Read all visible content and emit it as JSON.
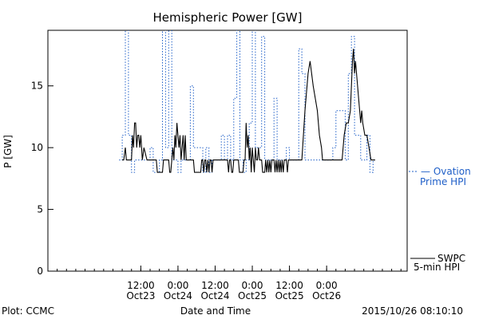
{
  "chart_data": {
    "type": "line",
    "title": "Hemispheric Power [GW]",
    "xlabel": "Date and Time",
    "ylabel": "P [GW]",
    "ylim": [
      0,
      19.5
    ],
    "yticks": [
      0,
      5,
      10,
      15
    ],
    "xlim": [
      "2015-10-22T06:00",
      "2015-10-27T02:00"
    ],
    "xticks": [
      {
        "t": "2015-10-23T12:00",
        "line1": "12:00",
        "line2": "Oct23"
      },
      {
        "t": "2015-10-24T00:00",
        "line1": "0:00",
        "line2": "Oct24"
      },
      {
        "t": "2015-10-24T12:00",
        "line1": "12:00",
        "line2": "Oct24"
      },
      {
        "t": "2015-10-25T00:00",
        "line1": "0:00",
        "line2": "Oct25"
      },
      {
        "t": "2015-10-25T12:00",
        "line1": "12:00",
        "line2": "Oct25"
      },
      {
        "t": "2015-10-26T00:00",
        "line1": "0:00",
        "line2": "Oct26"
      }
    ],
    "series": [
      {
        "name": "SWPC 5-min HPI",
        "color": "#000000",
        "style": "solid",
        "points": [
          [
            "2015-10-23T06:00",
            9
          ],
          [
            "2015-10-23T06:30",
            9
          ],
          [
            "2015-10-23T07:00",
            10
          ],
          [
            "2015-10-23T07:20",
            9
          ],
          [
            "2015-10-23T07:40",
            9
          ],
          [
            "2015-10-23T08:00",
            9
          ],
          [
            "2015-10-23T09:00",
            9
          ],
          [
            "2015-10-23T09:20",
            11
          ],
          [
            "2015-10-23T09:40",
            10
          ],
          [
            "2015-10-23T10:00",
            12
          ],
          [
            "2015-10-23T10:20",
            12
          ],
          [
            "2015-10-23T10:40",
            10
          ],
          [
            "2015-10-23T11:00",
            11
          ],
          [
            "2015-10-23T11:20",
            11
          ],
          [
            "2015-10-23T11:40",
            10
          ],
          [
            "2015-10-23T12:00",
            11
          ],
          [
            "2015-10-23T12:30",
            9
          ],
          [
            "2015-10-23T13:00",
            10
          ],
          [
            "2015-10-23T14:00",
            9
          ],
          [
            "2015-10-23T16:00",
            9
          ],
          [
            "2015-10-23T17:00",
            9
          ],
          [
            "2015-10-23T17:20",
            8
          ],
          [
            "2015-10-23T19:00",
            8
          ],
          [
            "2015-10-23T19:20",
            9
          ],
          [
            "2015-10-23T21:00",
            9
          ],
          [
            "2015-10-23T21:20",
            8
          ],
          [
            "2015-10-23T21:40",
            8
          ],
          [
            "2015-10-23T22:00",
            9
          ],
          [
            "2015-10-23T22:20",
            10
          ],
          [
            "2015-10-23T22:40",
            9
          ],
          [
            "2015-10-23T23:00",
            11
          ],
          [
            "2015-10-23T23:20",
            10
          ],
          [
            "2015-10-23T23:40",
            12
          ],
          [
            "2015-10-24T00:00",
            11
          ],
          [
            "2015-10-24T00:20",
            10
          ],
          [
            "2015-10-24T00:40",
            11
          ],
          [
            "2015-10-24T01:00",
            9
          ],
          [
            "2015-10-24T01:20",
            10
          ],
          [
            "2015-10-24T01:40",
            11
          ],
          [
            "2015-10-24T02:00",
            9
          ],
          [
            "2015-10-24T02:20",
            11
          ],
          [
            "2015-10-24T02:40",
            9
          ],
          [
            "2015-10-24T05:00",
            9
          ],
          [
            "2015-10-24T05:20",
            8
          ],
          [
            "2015-10-24T07:20",
            8
          ],
          [
            "2015-10-24T07:40",
            9
          ],
          [
            "2015-10-24T08:00",
            9
          ],
          [
            "2015-10-24T08:20",
            8
          ],
          [
            "2015-10-24T08:40",
            9
          ],
          [
            "2015-10-24T09:00",
            9
          ],
          [
            "2015-10-24T09:20",
            8
          ],
          [
            "2015-10-24T09:40",
            9
          ],
          [
            "2015-10-24T10:00",
            8
          ],
          [
            "2015-10-24T10:20",
            9
          ],
          [
            "2015-10-24T10:40",
            9
          ],
          [
            "2015-10-24T11:00",
            8
          ],
          [
            "2015-10-24T11:20",
            9
          ],
          [
            "2015-10-24T16:00",
            9
          ],
          [
            "2015-10-24T16:20",
            8
          ],
          [
            "2015-10-24T16:40",
            9
          ],
          [
            "2015-10-24T17:00",
            9
          ],
          [
            "2015-10-24T17:20",
            8
          ],
          [
            "2015-10-24T17:40",
            8
          ],
          [
            "2015-10-24T18:00",
            9
          ],
          [
            "2015-10-24T19:30",
            9
          ],
          [
            "2015-10-24T19:50",
            8
          ],
          [
            "2015-10-24T21:00",
            8
          ],
          [
            "2015-10-24T21:20",
            9
          ],
          [
            "2015-10-24T21:40",
            9
          ],
          [
            "2015-10-24T22:00",
            12
          ],
          [
            "2015-10-24T22:20",
            10
          ],
          [
            "2015-10-24T22:40",
            11
          ],
          [
            "2015-10-24T23:00",
            9
          ],
          [
            "2015-10-24T23:20",
            10
          ],
          [
            "2015-10-24T23:40",
            8
          ],
          [
            "2015-10-25T00:00",
            10
          ],
          [
            "2015-10-25T00:20",
            9
          ],
          [
            "2015-10-25T00:40",
            8
          ],
          [
            "2015-10-25T01:00",
            10
          ],
          [
            "2015-10-25T01:20",
            9
          ],
          [
            "2015-10-25T01:40",
            9
          ],
          [
            "2015-10-25T02:00",
            10
          ],
          [
            "2015-10-25T02:20",
            9
          ],
          [
            "2015-10-25T03:00",
            9
          ],
          [
            "2015-10-25T03:20",
            8
          ],
          [
            "2015-10-25T04:00",
            8
          ],
          [
            "2015-10-25T04:20",
            9
          ],
          [
            "2015-10-25T04:40",
            8
          ],
          [
            "2015-10-25T05:00",
            9
          ],
          [
            "2015-10-25T05:20",
            8
          ],
          [
            "2015-10-25T05:40",
            9
          ],
          [
            "2015-10-25T06:00",
            8
          ],
          [
            "2015-10-25T06:20",
            9
          ],
          [
            "2015-10-25T07:00",
            9
          ],
          [
            "2015-10-25T07:20",
            8
          ],
          [
            "2015-10-25T07:40",
            9
          ],
          [
            "2015-10-25T08:00",
            8
          ],
          [
            "2015-10-25T08:20",
            9
          ],
          [
            "2015-10-25T08:40",
            8
          ],
          [
            "2015-10-25T09:00",
            9
          ],
          [
            "2015-10-25T09:20",
            8
          ],
          [
            "2015-10-25T09:40",
            9
          ],
          [
            "2015-10-25T10:00",
            8
          ],
          [
            "2015-10-25T10:20",
            9
          ],
          [
            "2015-10-25T11:00",
            9
          ],
          [
            "2015-10-25T11:20",
            8
          ],
          [
            "2015-10-25T11:40",
            9
          ],
          [
            "2015-10-25T12:00",
            9
          ],
          [
            "2015-10-25T16:00",
            9
          ],
          [
            "2015-10-25T17:00",
            13
          ],
          [
            "2015-10-25T17:40",
            15
          ],
          [
            "2015-10-25T18:00",
            16
          ],
          [
            "2015-10-25T18:40",
            17
          ],
          [
            "2015-10-25T19:40",
            15
          ],
          [
            "2015-10-25T20:20",
            14
          ],
          [
            "2015-10-25T21:00",
            13
          ],
          [
            "2015-10-25T21:40",
            11
          ],
          [
            "2015-10-25T22:20",
            10
          ],
          [
            "2015-10-25T22:40",
            9
          ],
          [
            "2015-10-25T23:00",
            9
          ],
          [
            "2015-10-26T05:00",
            9
          ],
          [
            "2015-10-26T05:40",
            11
          ],
          [
            "2015-10-26T06:20",
            12
          ],
          [
            "2015-10-26T07:00",
            12
          ],
          [
            "2015-10-26T07:40",
            13
          ],
          [
            "2015-10-26T08:00",
            15
          ],
          [
            "2015-10-26T08:20",
            17
          ],
          [
            "2015-10-26T08:40",
            18
          ],
          [
            "2015-10-26T09:00",
            16
          ],
          [
            "2015-10-26T09:20",
            17
          ],
          [
            "2015-10-26T10:00",
            15
          ],
          [
            "2015-10-26T10:40",
            13
          ],
          [
            "2015-10-26T11:00",
            12
          ],
          [
            "2015-10-26T11:20",
            13
          ],
          [
            "2015-10-26T11:40",
            12
          ],
          [
            "2015-10-26T12:20",
            11
          ],
          [
            "2015-10-26T13:00",
            11
          ],
          [
            "2015-10-26T13:40",
            10
          ],
          [
            "2015-10-26T14:20",
            9
          ],
          [
            "2015-10-26T15:40",
            9
          ]
        ]
      },
      {
        "name": "Ovation Prime HPI",
        "color": "#1f5fc8",
        "style": "dashed",
        "points": [
          [
            "2015-10-23T05:00",
            9
          ],
          [
            "2015-10-23T06:00",
            11
          ],
          [
            "2015-10-23T07:00",
            20
          ],
          [
            "2015-10-23T08:00",
            11
          ],
          [
            "2015-10-23T09:00",
            8
          ],
          [
            "2015-10-23T10:00",
            9
          ],
          [
            "2015-10-23T11:00",
            9
          ],
          [
            "2015-10-23T12:00",
            9
          ],
          [
            "2015-10-23T13:00",
            9
          ],
          [
            "2015-10-23T14:00",
            9
          ],
          [
            "2015-10-23T15:00",
            10
          ],
          [
            "2015-10-23T16:00",
            8
          ],
          [
            "2015-10-23T17:00",
            8
          ],
          [
            "2015-10-23T18:00",
            9
          ],
          [
            "2015-10-23T19:00",
            20
          ],
          [
            "2015-10-23T20:00",
            10
          ],
          [
            "2015-10-23T21:00",
            20
          ],
          [
            "2015-10-23T22:00",
            9
          ],
          [
            "2015-10-23T23:00",
            9
          ],
          [
            "2015-10-24T00:00",
            8
          ],
          [
            "2015-10-24T01:00",
            9
          ],
          [
            "2015-10-24T02:00",
            9
          ],
          [
            "2015-10-24T03:00",
            9
          ],
          [
            "2015-10-24T04:00",
            15
          ],
          [
            "2015-10-24T05:00",
            10
          ],
          [
            "2015-10-24T06:00",
            10
          ],
          [
            "2015-10-24T07:00",
            10
          ],
          [
            "2015-10-24T08:00",
            8
          ],
          [
            "2015-10-24T09:00",
            10
          ],
          [
            "2015-10-24T10:00",
            8
          ],
          [
            "2015-10-24T11:00",
            9
          ],
          [
            "2015-10-24T12:00",
            9
          ],
          [
            "2015-10-24T13:00",
            9
          ],
          [
            "2015-10-24T14:00",
            11
          ],
          [
            "2015-10-24T15:00",
            9
          ],
          [
            "2015-10-24T16:00",
            11
          ],
          [
            "2015-10-24T17:00",
            9
          ],
          [
            "2015-10-24T18:00",
            14
          ],
          [
            "2015-10-24T19:00",
            20
          ],
          [
            "2015-10-24T20:00",
            9
          ],
          [
            "2015-10-24T21:00",
            8
          ],
          [
            "2015-10-24T22:00",
            9
          ],
          [
            "2015-10-24T23:00",
            12
          ],
          [
            "2015-10-25T00:00",
            20
          ],
          [
            "2015-10-25T01:00",
            10
          ],
          [
            "2015-10-25T02:00",
            10
          ],
          [
            "2015-10-25T03:00",
            19
          ],
          [
            "2015-10-25T04:00",
            9
          ],
          [
            "2015-10-25T05:00",
            9
          ],
          [
            "2015-10-25T06:00",
            9
          ],
          [
            "2015-10-25T07:00",
            14
          ],
          [
            "2015-10-25T08:00",
            9
          ],
          [
            "2015-10-25T09:00",
            9
          ],
          [
            "2015-10-25T10:00",
            9
          ],
          [
            "2015-10-25T11:00",
            10
          ],
          [
            "2015-10-25T12:00",
            9
          ],
          [
            "2015-10-25T13:00",
            9
          ],
          [
            "2015-10-25T14:00",
            9
          ],
          [
            "2015-10-25T15:00",
            18
          ],
          [
            "2015-10-25T16:00",
            16
          ],
          [
            "2015-10-25T17:00",
            9
          ],
          [
            "2015-10-25T18:00",
            9
          ],
          [
            "2015-10-26T01:00",
            9
          ],
          [
            "2015-10-26T02:00",
            10
          ],
          [
            "2015-10-26T03:00",
            13
          ],
          [
            "2015-10-26T04:00",
            13
          ],
          [
            "2015-10-26T05:00",
            13
          ],
          [
            "2015-10-26T06:00",
            9
          ],
          [
            "2015-10-26T07:00",
            16
          ],
          [
            "2015-10-26T08:00",
            19
          ],
          [
            "2015-10-26T09:00",
            11
          ],
          [
            "2015-10-26T10:00",
            11
          ],
          [
            "2015-10-26T11:00",
            9
          ],
          [
            "2015-10-26T12:00",
            9
          ],
          [
            "2015-10-26T13:00",
            11
          ],
          [
            "2015-10-26T14:00",
            8
          ],
          [
            "2015-10-26T15:00",
            9
          ]
        ]
      }
    ],
    "legend": {
      "placement": "right",
      "items": [
        {
          "label_line1": "— Ovation",
          "label_line2": "Prime HPI",
          "color": "#1f5fc8"
        },
        {
          "label_line1": "SWPC",
          "label_line2": "5-min HPI",
          "color": "#000000"
        }
      ]
    },
    "grid": false
  },
  "footer": {
    "left": "Plot: CCMC",
    "right": "2015/10/26 08:10:10"
  },
  "colors": {
    "ovation": "#1f5fc8",
    "swpc": "#000000",
    "axis": "#000000",
    "background": "#ffffff"
  }
}
